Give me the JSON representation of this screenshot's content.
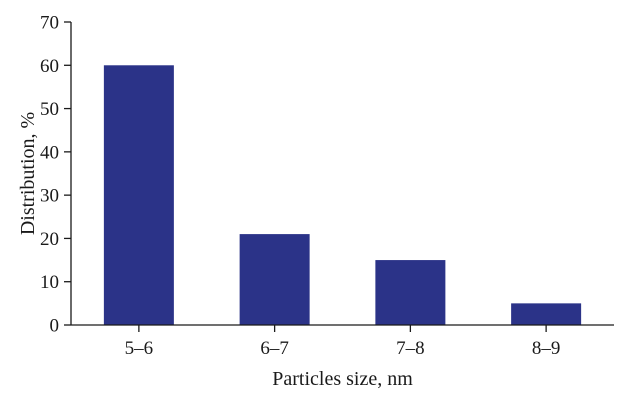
{
  "chart_data": {
    "type": "bar",
    "title": "",
    "xlabel": "Particles size, nm",
    "ylabel": "Distribution, %",
    "categories": [
      "5–6",
      "6–7",
      "7–8",
      "8–9"
    ],
    "values": [
      60,
      21,
      15,
      5
    ],
    "ylim": [
      0,
      70
    ],
    "yticks": [
      0,
      10,
      20,
      30,
      40,
      50,
      60,
      70
    ],
    "grid": false,
    "legend": "none",
    "bar_color": "#2b3388",
    "axis_color": "#1a1a1a"
  }
}
